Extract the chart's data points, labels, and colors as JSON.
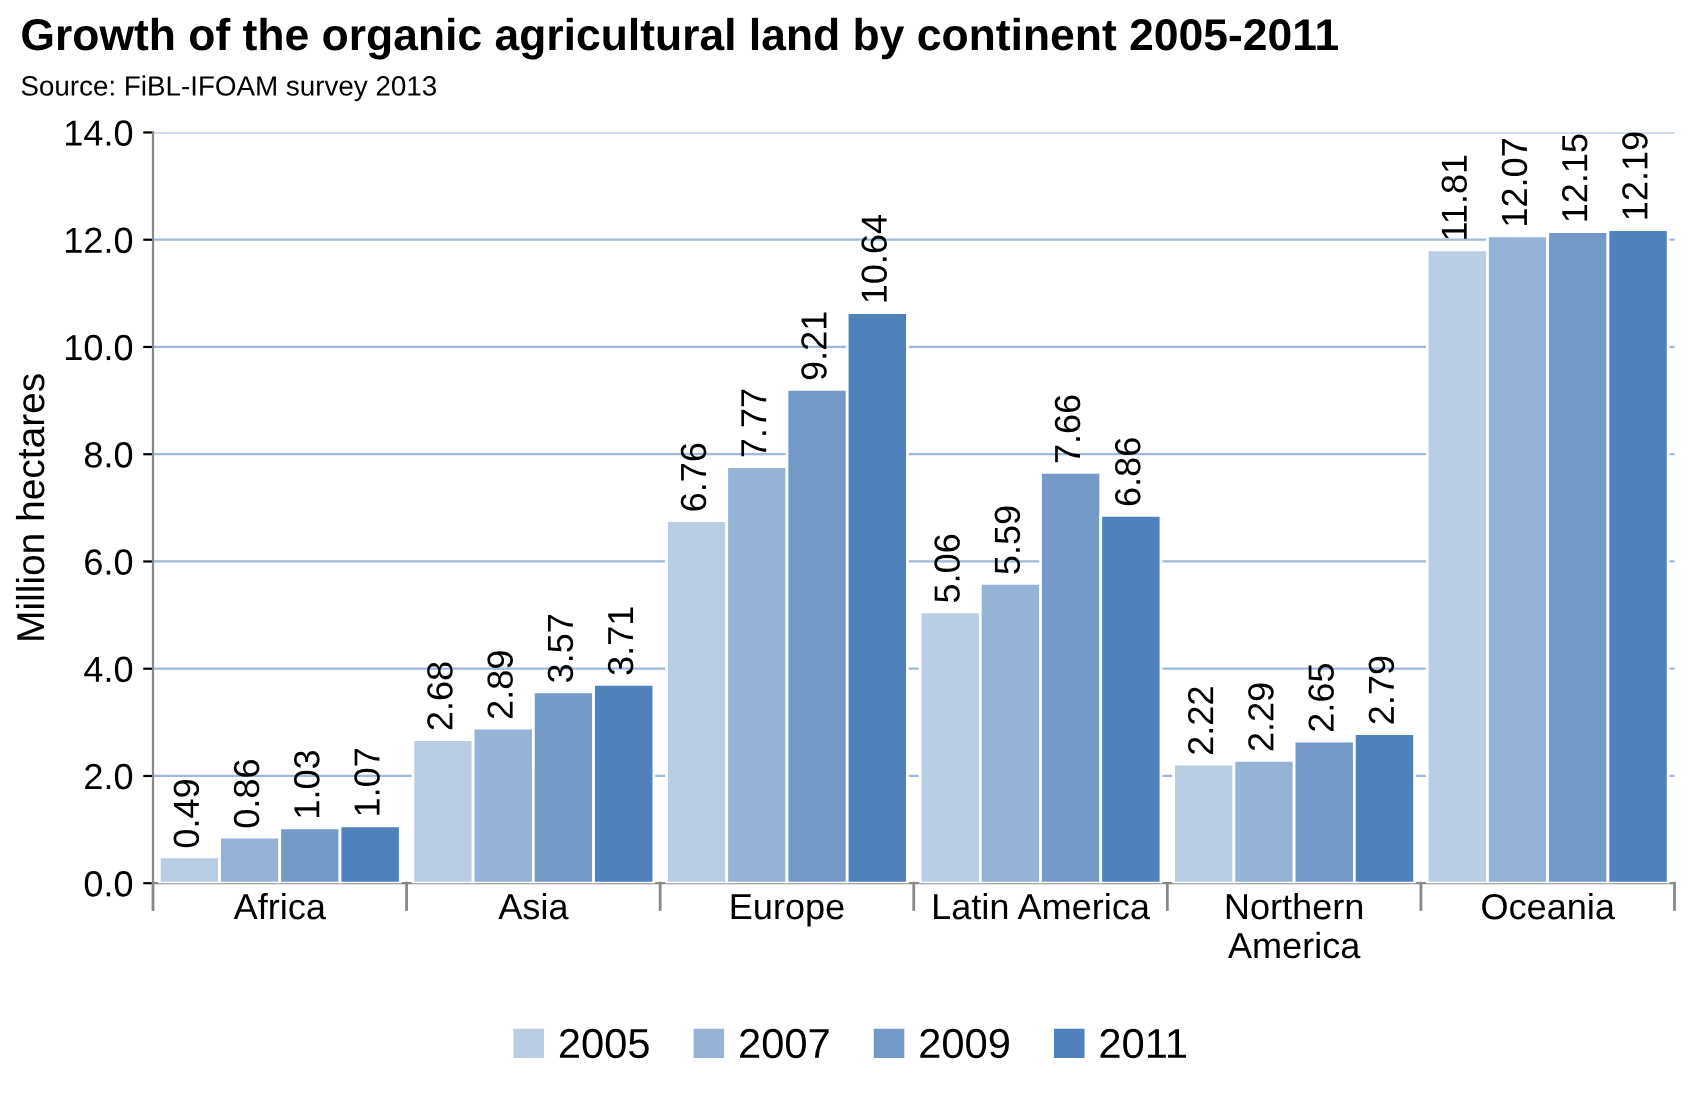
{
  "chart_data": {
    "type": "bar",
    "title": "Growth of the organic agricultural land by continent 2005-2011",
    "subtitle": "Source: FiBL-IFOAM survey 2013",
    "ylabel": "Million hectares",
    "categories": [
      "Africa",
      "Asia",
      "Europe",
      "Latin America",
      "Northern\nAmerica",
      "Oceania"
    ],
    "series": [
      {
        "name": "2005",
        "color": "#b9cde5",
        "values": [
          0.49,
          2.68,
          6.76,
          5.06,
          2.22,
          11.81
        ]
      },
      {
        "name": "2007",
        "color": "#95b3d7",
        "values": [
          0.86,
          2.89,
          7.77,
          5.59,
          2.29,
          12.07
        ]
      },
      {
        "name": "2009",
        "color": "#7399c6",
        "values": [
          1.03,
          3.57,
          9.21,
          7.66,
          2.65,
          12.15
        ]
      },
      {
        "name": "2011",
        "color": "#4f81bd",
        "values": [
          1.07,
          3.71,
          10.64,
          6.86,
          2.79,
          12.19
        ]
      }
    ],
    "ylim": [
      0,
      14
    ],
    "yticks": [
      {
        "value": 0,
        "label": "0.0"
      },
      {
        "value": 2,
        "label": "2.0"
      },
      {
        "value": 4,
        "label": "4.0"
      },
      {
        "value": 6,
        "label": "6.0"
      },
      {
        "value": 8,
        "label": "8.0"
      },
      {
        "value": 10,
        "label": "10.0"
      },
      {
        "value": 12,
        "label": "12.0"
      },
      {
        "value": 14,
        "label": "14.0"
      }
    ],
    "grid": "y",
    "legend": "bottom",
    "data_labels": true
  }
}
